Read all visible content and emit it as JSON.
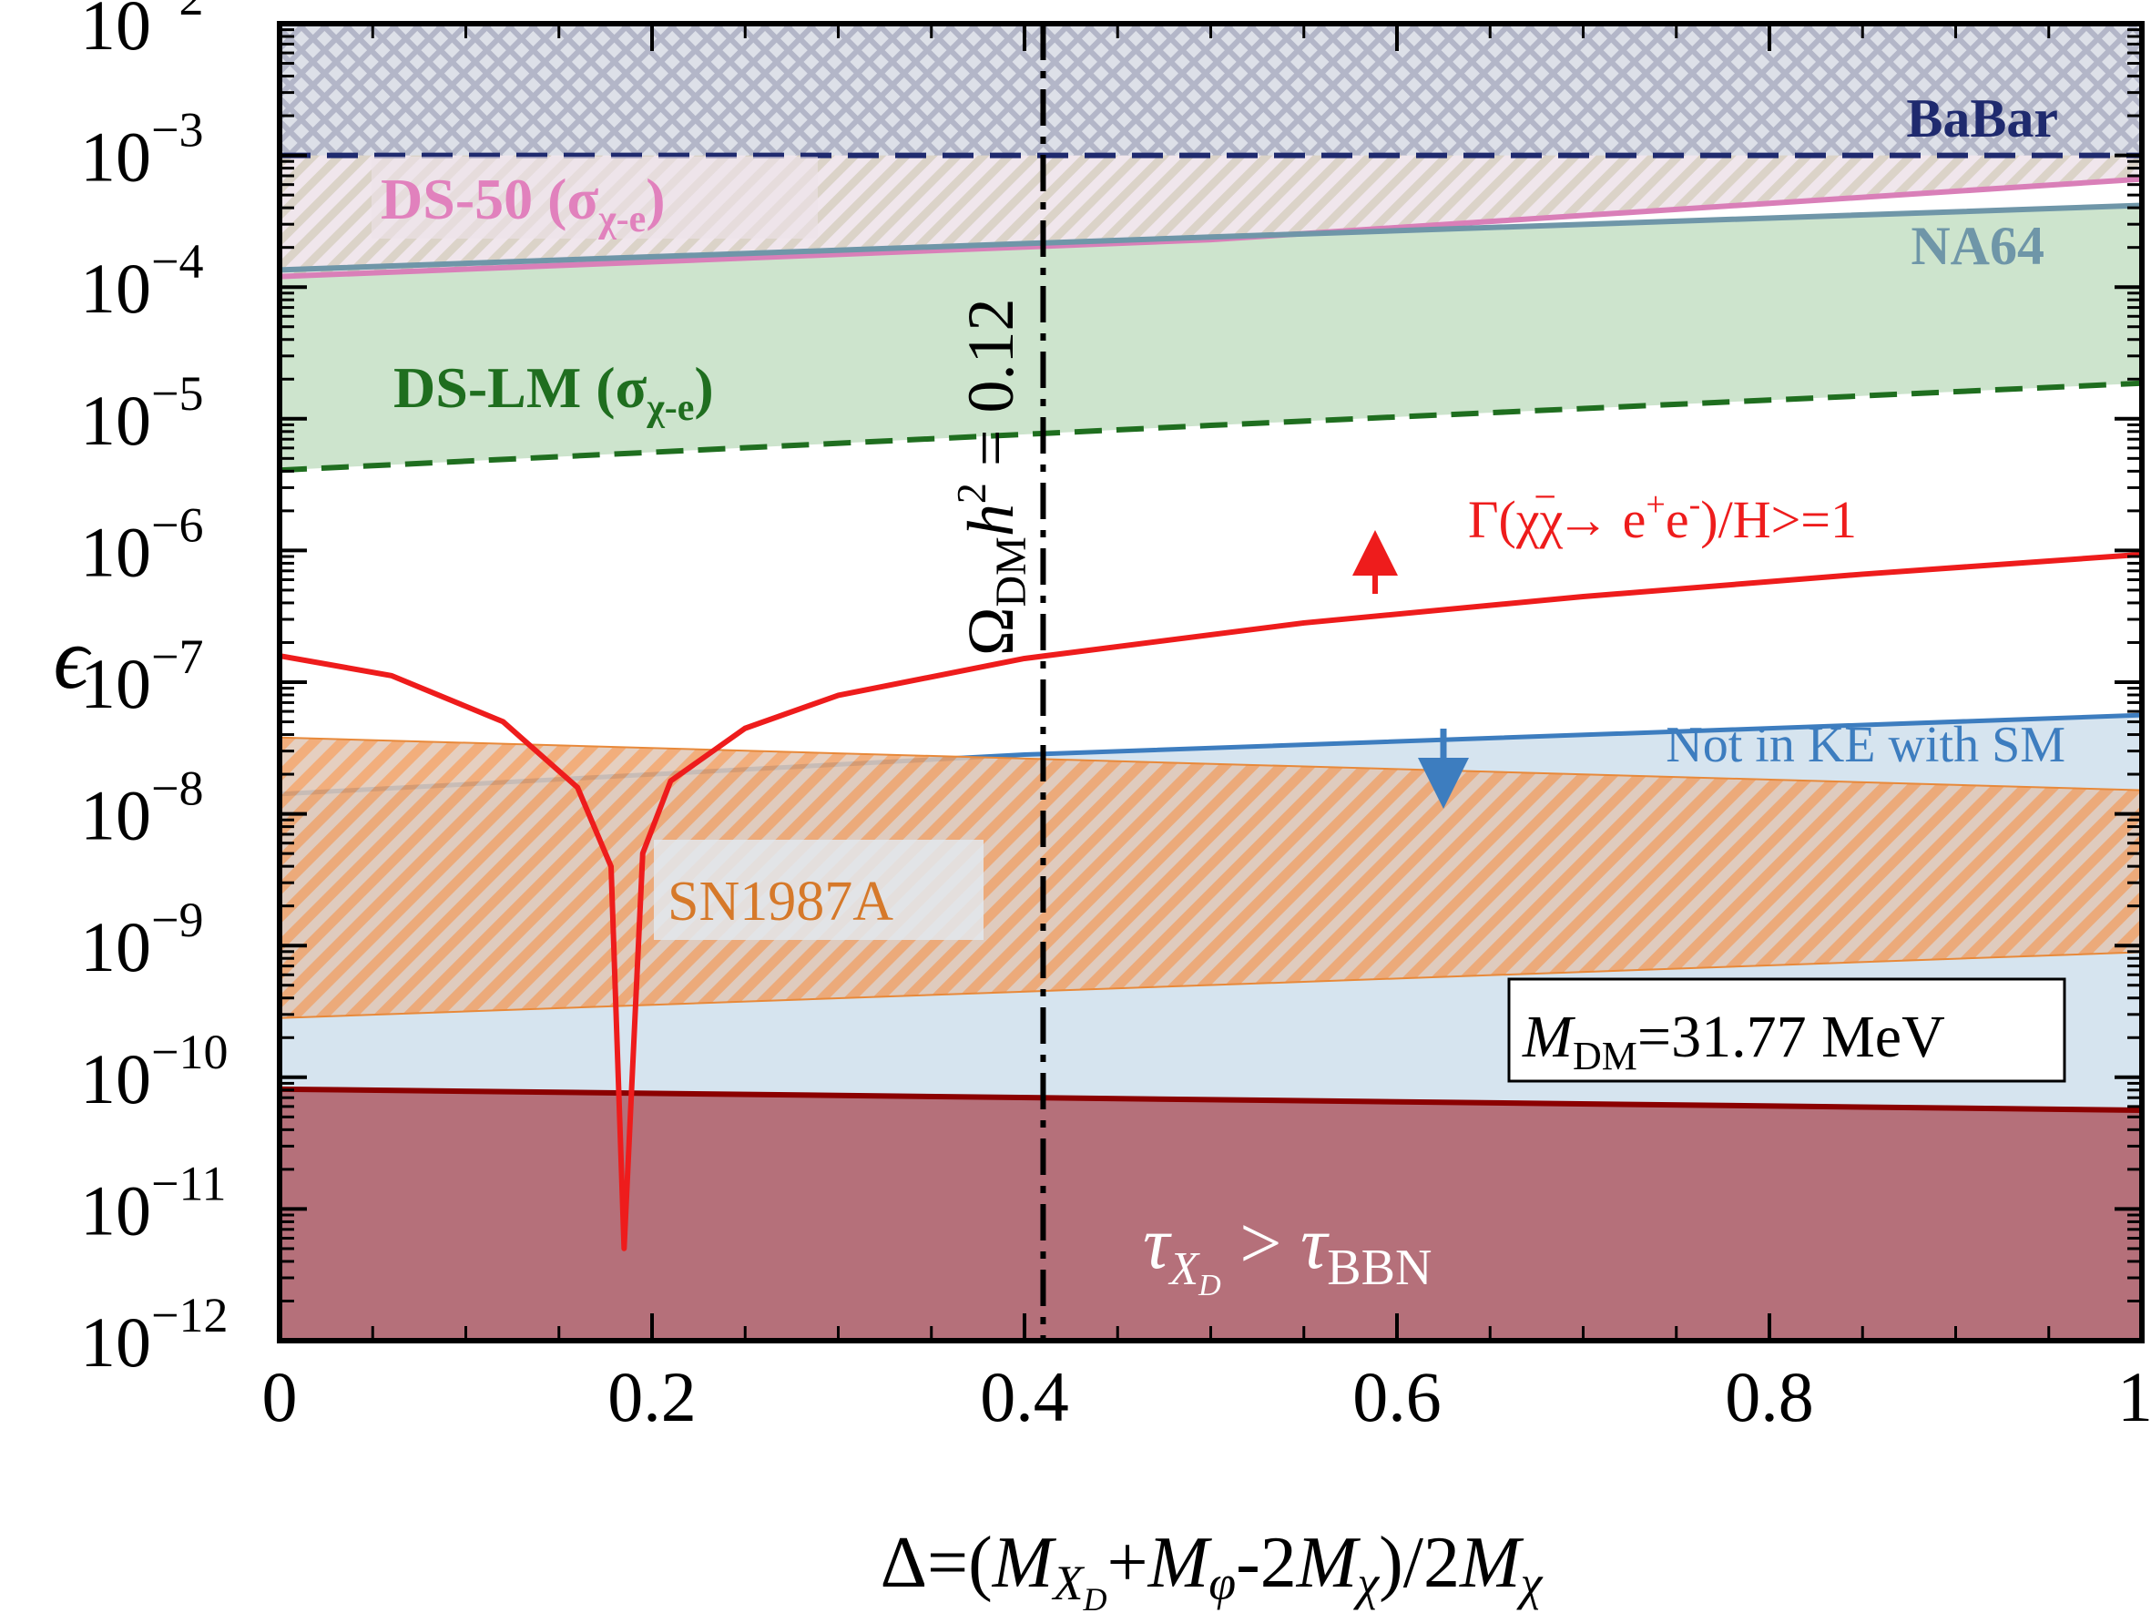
{
  "chart_data": {
    "type": "line",
    "x_axis": {
      "label_prefix": "Δ=(",
      "label_parts": [
        "M",
        "X",
        "D",
        "+",
        "M",
        "φ",
        "-2",
        "M",
        "χ",
        ")/2",
        "M",
        "χ"
      ],
      "ticks": [
        "0",
        "0.2",
        "0.4",
        "0.6",
        "0.8",
        "1"
      ],
      "tick_values": [
        0,
        0.2,
        0.4,
        0.6,
        0.8,
        1
      ],
      "range": [
        0,
        1
      ]
    },
    "y_axis": {
      "label": "ϵ",
      "scale": "log",
      "range_log10": [
        -12,
        -2
      ],
      "ticks": [
        {
          "base": "10",
          "exp": "−2",
          "log10": -2
        },
        {
          "base": "10",
          "exp": "−3",
          "log10": -3
        },
        {
          "base": "10",
          "exp": "−4",
          "log10": -4
        },
        {
          "base": "10",
          "exp": "−5",
          "log10": -5
        },
        {
          "base": "10",
          "exp": "−6",
          "log10": -6
        },
        {
          "base": "10",
          "exp": "−7",
          "log10": -7
        },
        {
          "base": "10",
          "exp": "−8",
          "log10": -8
        },
        {
          "base": "10",
          "exp": "−9",
          "log10": -9
        },
        {
          "base": "10",
          "exp": "−10",
          "log10": -10
        },
        {
          "base": "10",
          "exp": "−11",
          "log10": -11
        },
        {
          "base": "10",
          "exp": "−12",
          "log10": -12
        }
      ]
    },
    "regions": [
      {
        "name": "BaBar",
        "color": "#1f2a6e",
        "style": "crosshatch-dashed-boundary",
        "x": [
          0,
          1
        ],
        "lower_log10": [
          -3.0,
          -3.0
        ],
        "upper_log10": [
          -2,
          -2
        ]
      },
      {
        "name": "DS-50",
        "color": "#d97fb8",
        "style": "hatch-solid-boundary",
        "x": [
          0,
          0.5,
          1
        ],
        "lower_log10": [
          -3.92,
          -3.64,
          -3.18
        ],
        "upper_log10": [
          -2,
          -2,
          -2
        ]
      },
      {
        "name": "NA64",
        "color": "#6f96a8",
        "style": "solid-boundary",
        "x": [
          0,
          0.5,
          1
        ],
        "lower_log10": [
          -3.87,
          -3.62,
          -3.38
        ],
        "upper_log10": [
          -2,
          -2,
          -2
        ]
      },
      {
        "name": "DS-LM",
        "color": "#1f6e1f",
        "fill": "#cde4cd",
        "style": "filled-dashed-boundary",
        "x": [
          0,
          0.5,
          1
        ],
        "lower_log10": [
          -5.39,
          -5.05,
          -4.73
        ],
        "upper_log10": [
          -3.87,
          -3.62,
          -3.38
        ]
      },
      {
        "name": "Not in KE with SM",
        "color": "#3d7dbf",
        "fill": "#d6e4ef",
        "style": "filled-solid-boundary",
        "x": [
          0,
          0.4,
          1
        ],
        "lower_log10": [
          -12,
          -12,
          -12
        ],
        "upper_log10": [
          -7.85,
          -7.55,
          -7.25
        ]
      },
      {
        "name": "SN1987A",
        "color": "#e8893a",
        "style": "hatch",
        "x": [
          0,
          1
        ],
        "lower_log10": [
          -9.55,
          -9.05
        ],
        "upper_log10": [
          -7.42,
          -7.82
        ]
      },
      {
        "name": "τ_XD > τ_BBN",
        "color": "#8b0000",
        "fill": "#b5707a",
        "style": "filled-solid-boundary",
        "x": [
          0,
          1
        ],
        "lower_log10": [
          -12,
          -12
        ],
        "upper_log10": [
          -10.09,
          -10.25
        ]
      }
    ],
    "curves": [
      {
        "name": "Γ(χχ̄→ e⁺e⁻)/H>=1",
        "color": "#ee1c1c",
        "x": [
          0,
          0.06,
          0.12,
          0.16,
          0.178,
          0.185,
          0.195,
          0.21,
          0.25,
          0.3,
          0.4,
          0.55,
          0.7,
          0.85,
          1.0
        ],
        "y_log10": [
          -6.8,
          -6.95,
          -7.3,
          -7.8,
          -8.4,
          -11.3,
          -8.3,
          -7.75,
          -7.35,
          -7.1,
          -6.82,
          -6.55,
          -6.35,
          -6.18,
          -6.03
        ]
      }
    ],
    "vertical_lines": [
      {
        "name": "relic-line",
        "x": 0.41,
        "color": "#000000",
        "style": "dashdot"
      }
    ],
    "annotations": {
      "babar": "BaBar",
      "ds50_main": "DS-50 (σ",
      "ds50_sub": "χ-e",
      "ds50_close": ")",
      "na64": "NA64",
      "dslm_main": "DS-LM (σ",
      "dslm_sub": "χ-e",
      "dslm_close": ")",
      "relic_omega": "Ω",
      "relic_sub": "DM",
      "relic_h": "h",
      "relic_exp": "2",
      "relic_eq": " = 0.12",
      "gamma_main": "Γ(χχ",
      "gamma_bar": "−",
      "gamma_arrow": "→ e",
      "gamma_plus": "+",
      "gamma_e": "e",
      "gamma_minus": "-",
      "gamma_tail": ")/H>=1",
      "ke": "Not in KE with SM",
      "sn": "SN1987A",
      "mass_m": "M",
      "mass_sub": "DM",
      "mass_val": "=31.77 MeV",
      "bbn_tau1": "τ",
      "bbn_sub1": "X",
      "bbn_subsub": "D",
      "bbn_gt": " > ",
      "bbn_tau2": "τ",
      "bbn_sub2": "BBN"
    }
  }
}
